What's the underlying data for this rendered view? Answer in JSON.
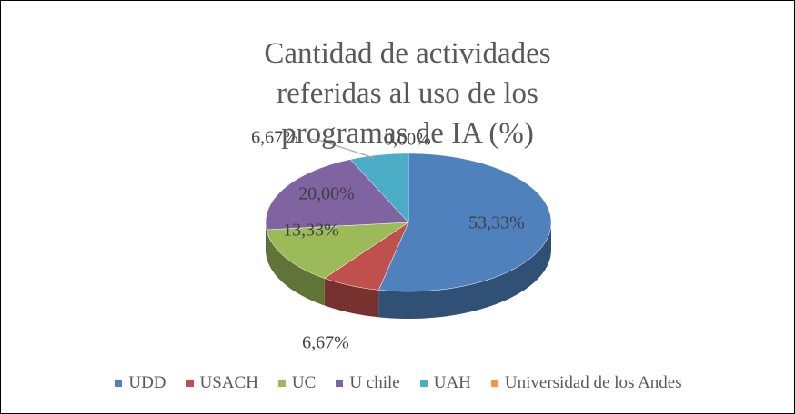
{
  "chart_data": {
    "type": "pie3d",
    "title": "Cantidad de actividades referidas al uso de los programas de IA (%)",
    "categories": [
      "UDD",
      "USACH",
      "UC",
      "U chile",
      "UAH",
      "Universidad de los Andes"
    ],
    "values": [
      53.33,
      6.67,
      13.33,
      20.0,
      6.67,
      0.0
    ],
    "value_labels": [
      "53,33%",
      "6,67%",
      "13,33%",
      "20,00%",
      "6,67%",
      "0,00%"
    ],
    "colors": [
      "#4f81bd",
      "#c0504d",
      "#9bbb59",
      "#8064a2",
      "#4bacc6",
      "#f79646"
    ],
    "legend": "bottom"
  }
}
